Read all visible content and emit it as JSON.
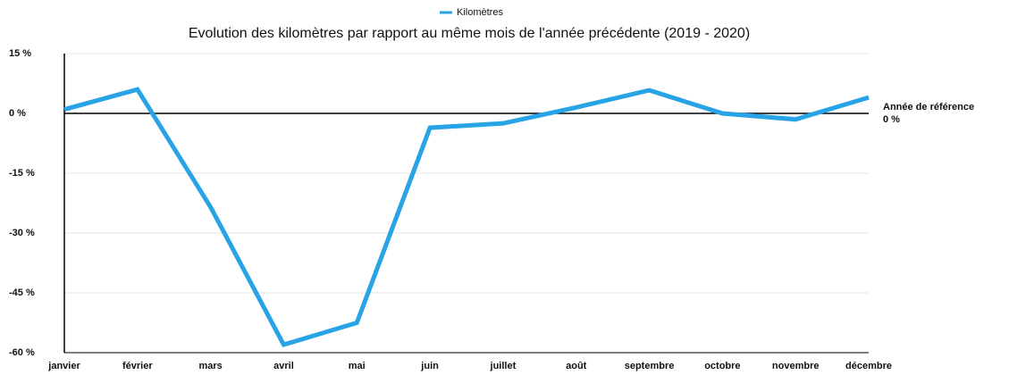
{
  "chart_data": {
    "type": "line",
    "title": "Evolution des kilomètres par rapport au même mois de l'année précédente (2019 - 2020)",
    "categories": [
      "janvier",
      "février",
      "mars",
      "avril",
      "mai",
      "juin",
      "juillet",
      "août",
      "septembre",
      "octobre",
      "novembre",
      "décembre"
    ],
    "series": [
      {
        "name": "Kilomètres",
        "color": "#27a3e6",
        "values": [
          1,
          6,
          -23.5,
          -58,
          -52.5,
          -3.6,
          -2.5,
          1.5,
          5.8,
          0,
          -1.5,
          4
        ]
      }
    ],
    "ylim": [
      -60,
      15
    ],
    "yticks": [
      {
        "value": -60,
        "label": "-60 %"
      },
      {
        "value": -45,
        "label": "-45 %"
      },
      {
        "value": -30,
        "label": "-30 %"
      },
      {
        "value": -15,
        "label": "-15 %"
      },
      {
        "value": 0,
        "label": "0 %"
      },
      {
        "value": 15,
        "label": "15 %"
      }
    ],
    "grid": true,
    "reference": {
      "value": 0,
      "text": "Année de référence",
      "label": "0 %"
    }
  }
}
